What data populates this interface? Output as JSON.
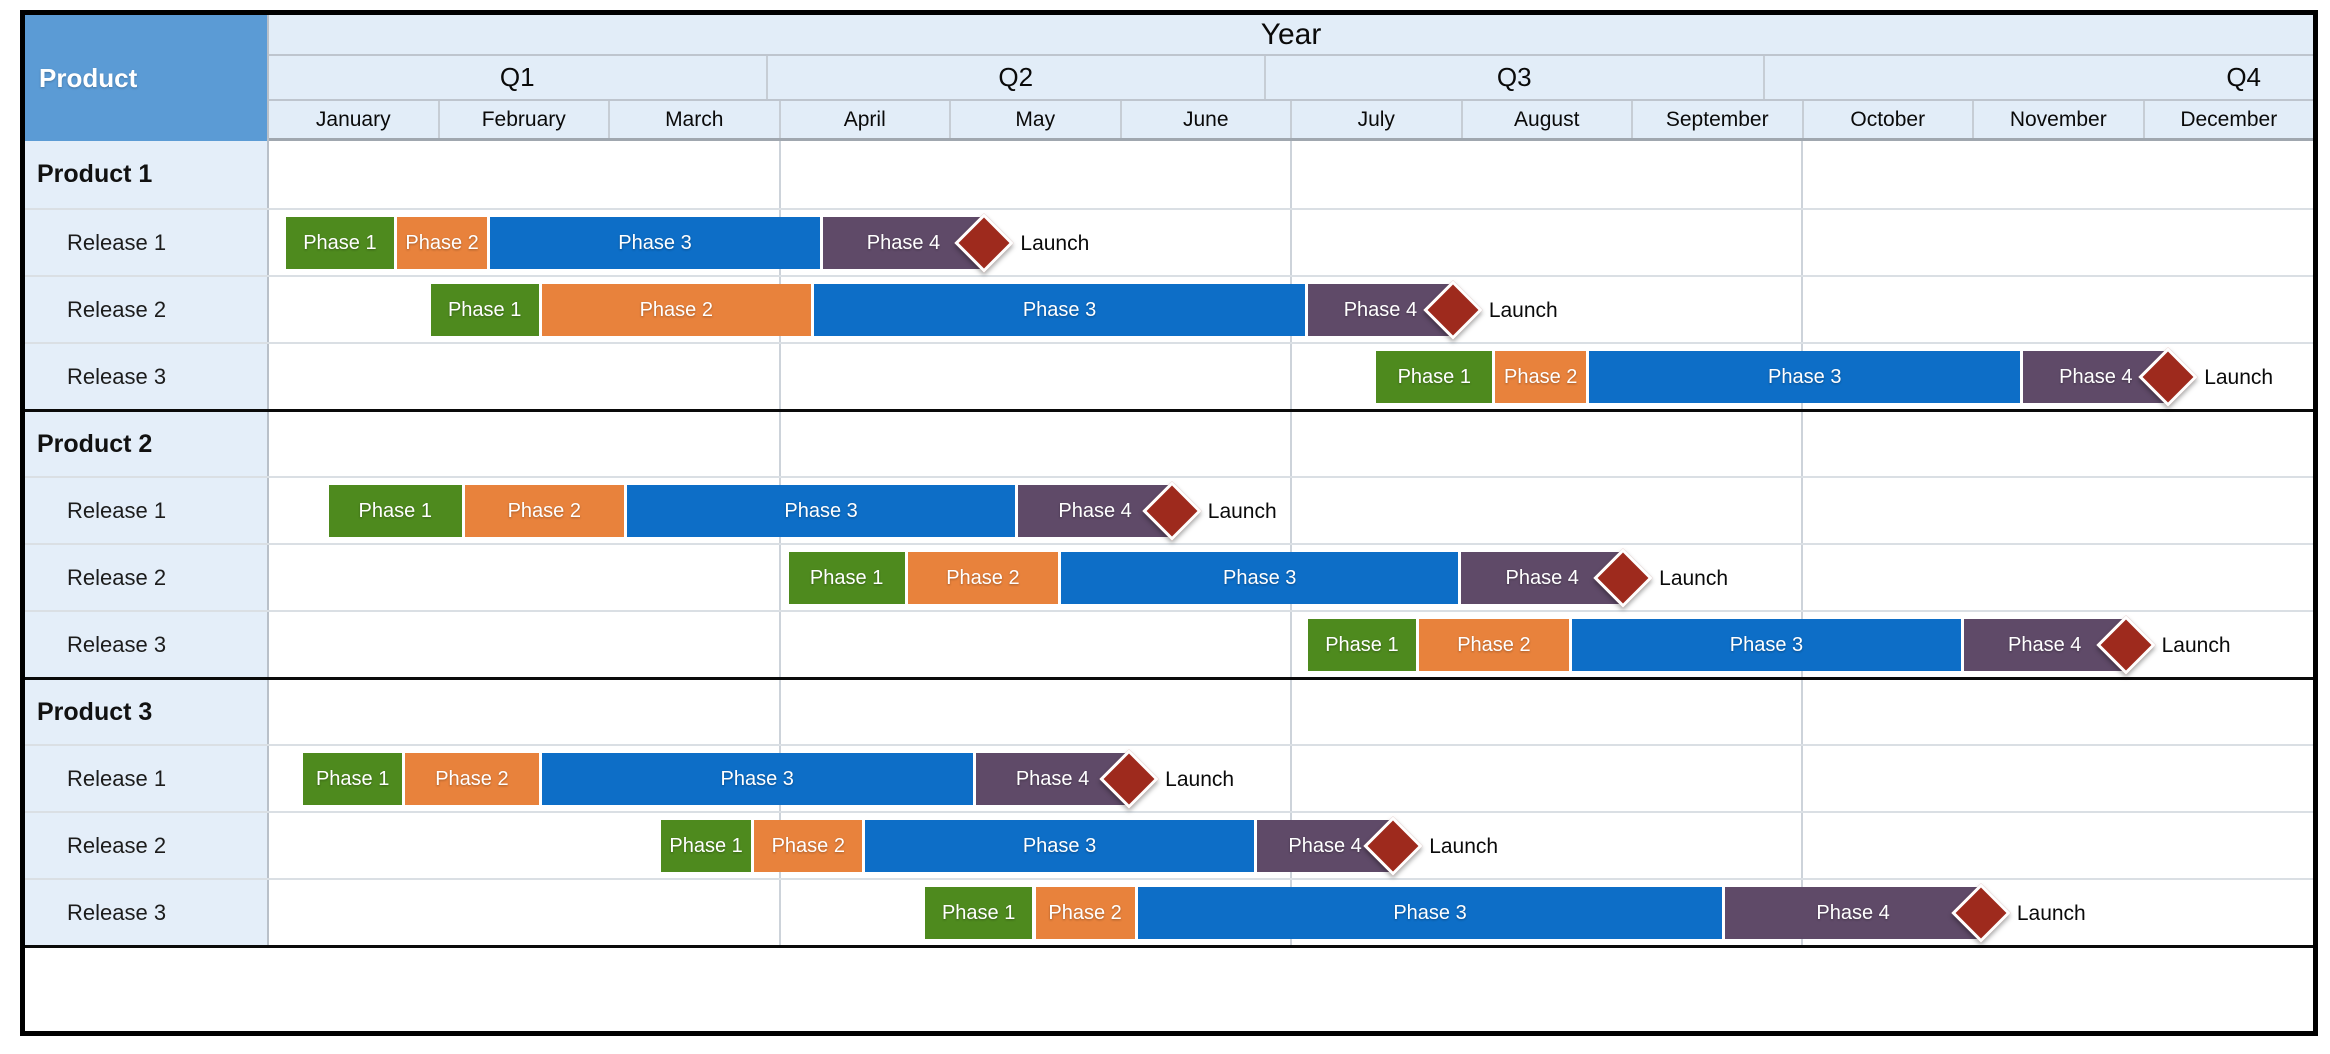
{
  "table": {
    "corner_label": "Product",
    "year_label": "Year"
  },
  "colors": {
    "phase1": "#4E8A1E",
    "phase2": "#E8823C",
    "phase3": "#0D6EC7",
    "phase4": "#5F4A68",
    "launch_diamond": "#9E2A1D",
    "corner_bg": "#5B9BD5",
    "header_bg": "#E2EDF8",
    "label_column_bg": "#E4EEF9",
    "outer_border": "#000000",
    "quarter_gridline": "#CDD3DA"
  },
  "chart_data": {
    "type": "bar",
    "subtype": "gantt-roadmap",
    "title": "Year",
    "x_axis": {
      "label": "Year",
      "quarters": [
        "Q1",
        "Q2",
        "Q3",
        "Q4"
      ],
      "months": [
        "January",
        "February",
        "March",
        "April",
        "May",
        "June",
        "July",
        "August",
        "September",
        "October",
        "November",
        "December"
      ],
      "range_months": [
        0,
        12
      ],
      "quarter_gridlines": true
    },
    "y_axis": {
      "label": "Product",
      "row_groups": [
        "Product 1",
        "Product 2",
        "Product 3"
      ],
      "rows_per_group": [
        "Release 1",
        "Release 2",
        "Release 3"
      ]
    },
    "legend": null,
    "units_note": "start/end are fractional months, 0 = start of January, 12 = end of December",
    "products": [
      {
        "label": "Product 1",
        "releases": [
          {
            "label": "Release 1",
            "phases": [
              {
                "name": "Phase 1",
                "start": 0.1,
                "end": 0.75
              },
              {
                "name": "Phase 2",
                "start": 0.75,
                "end": 1.3
              },
              {
                "name": "Phase 3",
                "start": 1.3,
                "end": 3.25
              },
              {
                "name": "Phase 4",
                "start": 3.25,
                "end": 4.2
              }
            ],
            "launch": {
              "at": 4.2,
              "label": "Launch"
            }
          },
          {
            "label": "Release 2",
            "phases": [
              {
                "name": "Phase 1",
                "start": 0.95,
                "end": 1.6
              },
              {
                "name": "Phase 2",
                "start": 1.6,
                "end": 3.2
              },
              {
                "name": "Phase 3",
                "start": 3.2,
                "end": 6.1
              },
              {
                "name": "Phase 4",
                "start": 6.1,
                "end": 6.95
              }
            ],
            "launch": {
              "at": 6.95,
              "label": "Launch"
            }
          },
          {
            "label": "Release 3",
            "phases": [
              {
                "name": "Phase 1",
                "start": 6.5,
                "end": 7.2
              },
              {
                "name": "Phase 2",
                "start": 7.2,
                "end": 7.75
              },
              {
                "name": "Phase 3",
                "start": 7.75,
                "end": 10.3
              },
              {
                "name": "Phase 4",
                "start": 10.3,
                "end": 11.15
              }
            ],
            "launch": {
              "at": 11.15,
              "label": "Launch"
            }
          }
        ]
      },
      {
        "label": "Product 2",
        "releases": [
          {
            "label": "Release 1",
            "phases": [
              {
                "name": "Phase 1",
                "start": 0.35,
                "end": 1.15
              },
              {
                "name": "Phase 2",
                "start": 1.15,
                "end": 2.1
              },
              {
                "name": "Phase 3",
                "start": 2.1,
                "end": 4.4
              },
              {
                "name": "Phase 4",
                "start": 4.4,
                "end": 5.3
              }
            ],
            "launch": {
              "at": 5.3,
              "label": "Launch"
            }
          },
          {
            "label": "Release 2",
            "phases": [
              {
                "name": "Phase 1",
                "start": 3.05,
                "end": 3.75
              },
              {
                "name": "Phase 2",
                "start": 3.75,
                "end": 4.65
              },
              {
                "name": "Phase 3",
                "start": 4.65,
                "end": 7.0
              },
              {
                "name": "Phase 4",
                "start": 7.0,
                "end": 7.95
              }
            ],
            "launch": {
              "at": 7.95,
              "label": "Launch"
            }
          },
          {
            "label": "Release 3",
            "phases": [
              {
                "name": "Phase 1",
                "start": 6.1,
                "end": 6.75
              },
              {
                "name": "Phase 2",
                "start": 6.75,
                "end": 7.65
              },
              {
                "name": "Phase 3",
                "start": 7.65,
                "end": 9.95
              },
              {
                "name": "Phase 4",
                "start": 9.95,
                "end": 10.9
              }
            ],
            "launch": {
              "at": 10.9,
              "label": "Launch"
            }
          }
        ]
      },
      {
        "label": "Product 3",
        "releases": [
          {
            "label": "Release 1",
            "phases": [
              {
                "name": "Phase 1",
                "start": 0.2,
                "end": 0.8
              },
              {
                "name": "Phase 2",
                "start": 0.8,
                "end": 1.6
              },
              {
                "name": "Phase 3",
                "start": 1.6,
                "end": 4.15
              },
              {
                "name": "Phase 4",
                "start": 4.15,
                "end": 5.05
              }
            ],
            "launch": {
              "at": 5.05,
              "label": "Launch"
            }
          },
          {
            "label": "Release 2",
            "phases": [
              {
                "name": "Phase 1",
                "start": 2.3,
                "end": 2.85
              },
              {
                "name": "Phase 2",
                "start": 2.85,
                "end": 3.5
              },
              {
                "name": "Phase 3",
                "start": 3.5,
                "end": 5.8
              },
              {
                "name": "Phase 4",
                "start": 5.8,
                "end": 6.6
              }
            ],
            "launch": {
              "at": 6.6,
              "label": "Launch"
            }
          },
          {
            "label": "Release 3",
            "phases": [
              {
                "name": "Phase 1",
                "start": 3.85,
                "end": 4.5
              },
              {
                "name": "Phase 2",
                "start": 4.5,
                "end": 5.1
              },
              {
                "name": "Phase 3",
                "start": 5.1,
                "end": 8.55
              },
              {
                "name": "Phase 4",
                "start": 8.55,
                "end": 10.05
              }
            ],
            "launch": {
              "at": 10.05,
              "label": "Launch"
            }
          }
        ]
      }
    ]
  }
}
